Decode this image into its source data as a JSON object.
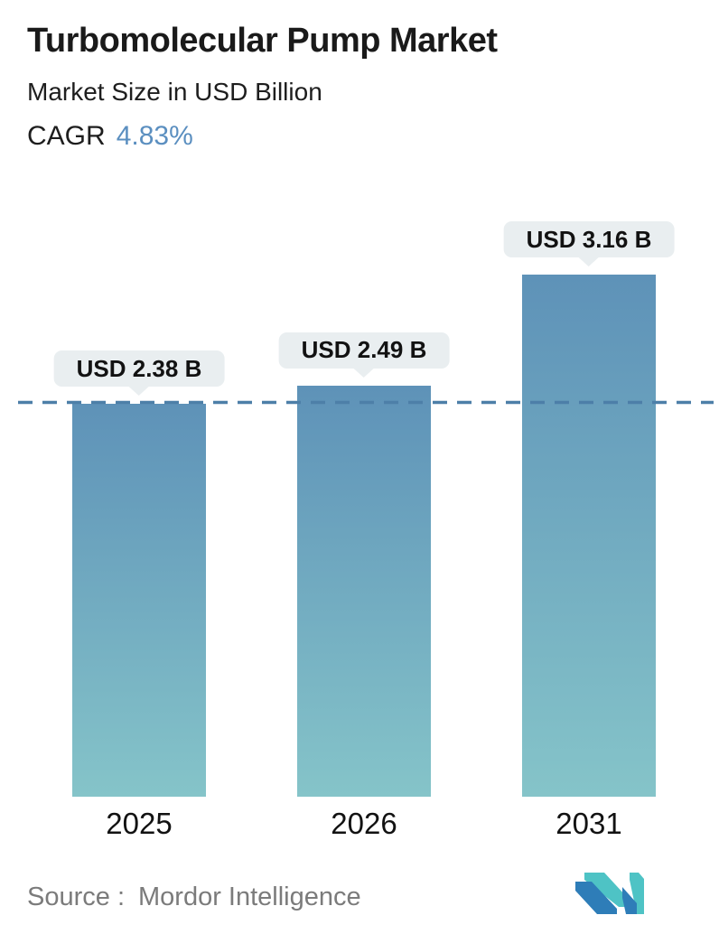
{
  "header": {
    "title": "Turbomolecular Pump Market",
    "subtitle": "Market Size in USD Billion",
    "cagr_label": "CAGR",
    "cagr_value": "4.83%"
  },
  "chart_data": {
    "type": "bar",
    "title": "Turbomolecular Pump Market",
    "subtitle": "Market Size in USD Billion",
    "unit": "USD Billion",
    "cagr": "4.83%",
    "categories": [
      "2025",
      "2026",
      "2031"
    ],
    "values": [
      2.38,
      2.49,
      3.16
    ],
    "value_labels": [
      "USD 2.38 B",
      "USD 2.49 B",
      "USD 3.16 B"
    ],
    "ylim": [
      0,
      3.6
    ],
    "grid": false,
    "legend": false,
    "reference_line": {
      "value": 2.38,
      "style": "dashed",
      "note": "horizontal dashed line at level of first bar"
    },
    "bar_gradient": [
      "#5e92b8",
      "#85c4c9"
    ]
  },
  "footer": {
    "source_label": "Source :",
    "source_value": "Mordor Intelligence",
    "logo": "mordor-intelligence-logo"
  },
  "colors": {
    "accent_blue": "#5b8fc0",
    "bar_top": "#5e92b8",
    "bar_bottom": "#85c4c9",
    "dashed_line": "#4d7fa8",
    "callout_bg": "#e9eef0",
    "text_dark": "#1a1a1a",
    "source_gray": "#7b7b7b",
    "logo_teal": "#4ec3c5",
    "logo_blue": "#2e7db8"
  }
}
